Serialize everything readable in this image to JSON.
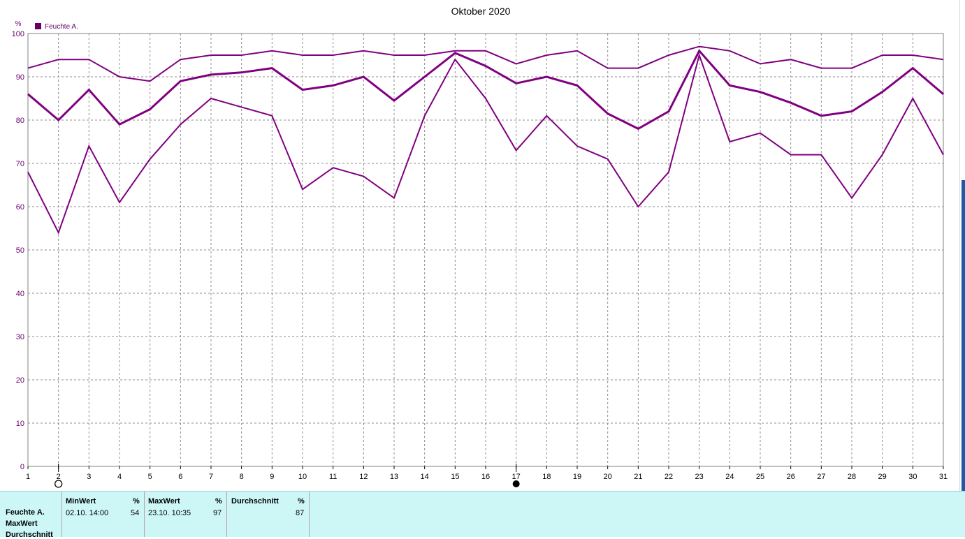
{
  "chart_data": {
    "type": "line",
    "title": "Oktober 2020",
    "unit_label": "%",
    "legend": [
      "Feuchte A."
    ],
    "legend_color": "#660066",
    "line_color": "#800080",
    "ylim": [
      0,
      100
    ],
    "yticks": [
      0,
      10,
      20,
      30,
      40,
      50,
      60,
      70,
      80,
      90,
      100
    ],
    "x": [
      1,
      2,
      3,
      4,
      5,
      6,
      7,
      8,
      9,
      10,
      11,
      12,
      13,
      14,
      15,
      16,
      17,
      18,
      19,
      20,
      21,
      22,
      23,
      24,
      25,
      26,
      27,
      28,
      29,
      30,
      31
    ],
    "grid": true,
    "series": [
      {
        "values": [
          92,
          94,
          94,
          90,
          89,
          94,
          95,
          95,
          96,
          95,
          95,
          96,
          95,
          95,
          96,
          96,
          93,
          95,
          96,
          92,
          92,
          95,
          97,
          96,
          93,
          94,
          92,
          92,
          95,
          95,
          94
        ]
      },
      {
        "values": [
          86,
          80,
          87,
          79,
          82.5,
          89,
          90.5,
          91,
          92,
          87,
          88,
          90,
          84.5,
          90,
          95.5,
          92.5,
          88.5,
          90,
          88,
          81.5,
          78,
          82,
          96,
          88,
          86.5,
          84,
          81,
          82,
          86.5,
          92,
          86
        ]
      },
      {
        "values": [
          68,
          54,
          74,
          61,
          71,
          79,
          85,
          83,
          81,
          64,
          69,
          67,
          62,
          81,
          94,
          85,
          73,
          81,
          74,
          71,
          60,
          68,
          95,
          75,
          77,
          72,
          72,
          62,
          72,
          85,
          72
        ]
      }
    ],
    "moon_markers": [
      {
        "day": 2,
        "phase": "new-moon"
      },
      {
        "day": 17,
        "phase": "full-moon"
      }
    ]
  },
  "table": {
    "row_labels": [
      "Feuchte A.",
      "MaxWert",
      "Durchschnitt"
    ],
    "columns": [
      {
        "header": "MinWert",
        "unit": "%",
        "time": "02.10.  14:00",
        "value": "54"
      },
      {
        "header": "MaxWert",
        "unit": "%",
        "time": "23.10.  10:35",
        "value": "97"
      },
      {
        "header": "Durchschnitt",
        "unit": "%",
        "time": "",
        "value": "87"
      }
    ]
  }
}
